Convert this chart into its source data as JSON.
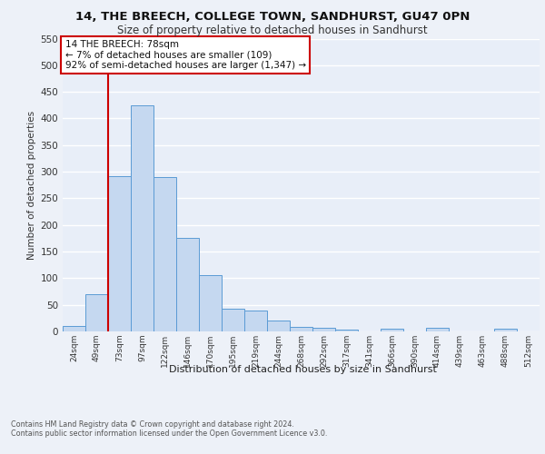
{
  "title1": "14, THE BREECH, COLLEGE TOWN, SANDHURST, GU47 0PN",
  "title2": "Size of property relative to detached houses in Sandhurst",
  "xlabel": "Distribution of detached houses by size in Sandhurst",
  "ylabel": "Number of detached properties",
  "footnote": "Contains HM Land Registry data © Crown copyright and database right 2024.\nContains public sector information licensed under the Open Government Licence v3.0.",
  "annotation_line1": "14 THE BREECH: 78sqm",
  "annotation_line2": "← 7% of detached houses are smaller (109)",
  "annotation_line3": "92% of semi-detached houses are larger (1,347) →",
  "bar_labels": [
    "24sqm",
    "49sqm",
    "73sqm",
    "97sqm",
    "122sqm",
    "146sqm",
    "170sqm",
    "195sqm",
    "219sqm",
    "244sqm",
    "268sqm",
    "292sqm",
    "317sqm",
    "341sqm",
    "366sqm",
    "390sqm",
    "414sqm",
    "439sqm",
    "463sqm",
    "488sqm",
    "512sqm"
  ],
  "bar_values": [
    10,
    70,
    291,
    424,
    290,
    175,
    105,
    43,
    39,
    20,
    9,
    6,
    4,
    0,
    5,
    0,
    6,
    0,
    0,
    5,
    0
  ],
  "bar_color": "#c5d8f0",
  "bar_edge_color": "#5b9bd5",
  "ylim": [
    0,
    550
  ],
  "yticks": [
    0,
    50,
    100,
    150,
    200,
    250,
    300,
    350,
    400,
    450,
    500,
    550
  ],
  "bg_color": "#edf1f8",
  "plot_bg_color": "#e8eef8",
  "grid_color": "#ffffff",
  "annotation_box_edge": "#cc0000",
  "red_line_color": "#cc0000",
  "title1_fontsize": 9.5,
  "title2_fontsize": 8.5,
  "ylabel_fontsize": 7.5,
  "xtick_fontsize": 6.5,
  "ytick_fontsize": 7.5,
  "xlabel_fontsize": 8.0,
  "footnote_fontsize": 5.8,
  "annot_fontsize": 7.5
}
